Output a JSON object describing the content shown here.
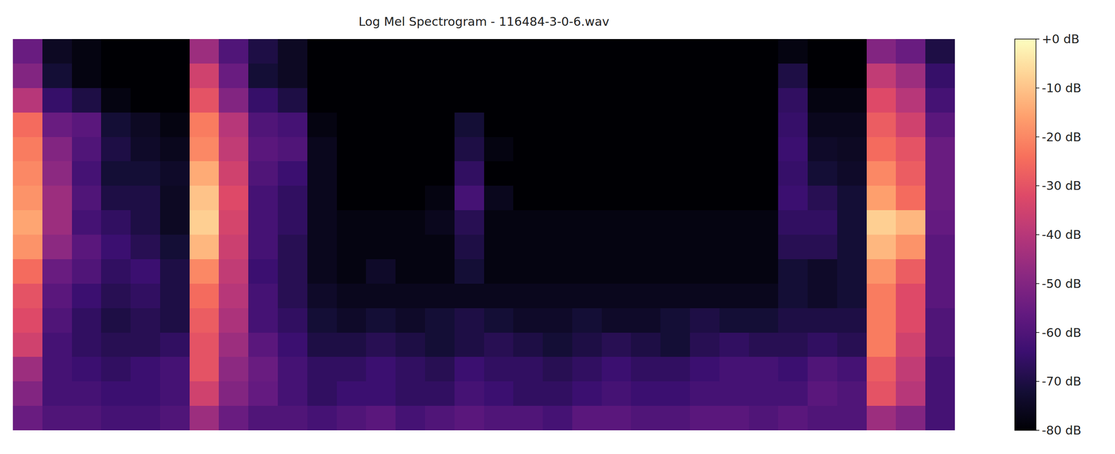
{
  "chart_data": {
    "type": "heatmap",
    "title": "Log Mel Spectrogram - 116484-3-0-6.wav",
    "tick_labels": false,
    "cells": [
      [
        -55,
        -75,
        -78,
        -80,
        -80,
        -80,
        -45,
        -60,
        -70,
        -75,
        -80,
        -80,
        -80,
        -80,
        -80,
        -80,
        -80,
        -80,
        -80,
        -80,
        -80,
        -80,
        -80,
        -80,
        -80,
        -80,
        -78,
        -80,
        -80,
        -50,
        -55,
        -70
      ],
      [
        -50,
        -72,
        -78,
        -80,
        -80,
        -80,
        -35,
        -55,
        -72,
        -75,
        -80,
        -80,
        -80,
        -80,
        -80,
        -80,
        -80,
        -80,
        -80,
        -80,
        -80,
        -80,
        -80,
        -80,
        -80,
        -80,
        -70,
        -80,
        -80,
        -38,
        -45,
        -65
      ],
      [
        -40,
        -65,
        -70,
        -78,
        -80,
        -80,
        -30,
        -50,
        -65,
        -70,
        -80,
        -80,
        -80,
        -80,
        -80,
        -80,
        -80,
        -80,
        -80,
        -80,
        -80,
        -80,
        -80,
        -80,
        -80,
        -80,
        -66,
        -78,
        -78,
        -32,
        -40,
        -62
      ],
      [
        -25,
        -55,
        -58,
        -72,
        -75,
        -78,
        -22,
        -40,
        -60,
        -62,
        -78,
        -80,
        -80,
        -80,
        -80,
        -72,
        -80,
        -80,
        -80,
        -80,
        -80,
        -80,
        -80,
        -80,
        -80,
        -80,
        -65,
        -76,
        -76,
        -28,
        -35,
        -58
      ],
      [
        -22,
        -50,
        -60,
        -70,
        -74,
        -76,
        -20,
        -38,
        -58,
        -60,
        -76,
        -80,
        -80,
        -80,
        -80,
        -70,
        -78,
        -80,
        -80,
        -80,
        -80,
        -80,
        -80,
        -80,
        -80,
        -80,
        -64,
        -74,
        -75,
        -25,
        -30,
        -55
      ],
      [
        -20,
        -48,
        -62,
        -72,
        -72,
        -74,
        -14,
        -35,
        -60,
        -64,
        -76,
        -80,
        -80,
        -80,
        -80,
        -66,
        -80,
        -80,
        -80,
        -80,
        -80,
        -80,
        -80,
        -80,
        -80,
        -80,
        -65,
        -72,
        -74,
        -20,
        -28,
        -55
      ],
      [
        -18,
        -45,
        -60,
        -70,
        -70,
        -75,
        -10,
        -32,
        -62,
        -66,
        -76,
        -80,
        -80,
        -80,
        -78,
        -62,
        -76,
        -80,
        -80,
        -80,
        -80,
        -80,
        -80,
        -80,
        -80,
        -80,
        -64,
        -68,
        -72,
        -16,
        -25,
        -55
      ],
      [
        -15,
        -45,
        -62,
        -66,
        -70,
        -75,
        -8,
        -34,
        -62,
        -66,
        -76,
        -78,
        -78,
        -78,
        -76,
        -68,
        -78,
        -78,
        -78,
        -78,
        -78,
        -78,
        -78,
        -78,
        -78,
        -78,
        -66,
        -66,
        -72,
        -8,
        -12,
        -56
      ],
      [
        -18,
        -48,
        -58,
        -64,
        -68,
        -72,
        -12,
        -36,
        -62,
        -68,
        -76,
        -78,
        -78,
        -78,
        -78,
        -70,
        -78,
        -78,
        -78,
        -78,
        -78,
        -78,
        -78,
        -78,
        -78,
        -78,
        -68,
        -68,
        -72,
        -12,
        -18,
        -58
      ],
      [
        -25,
        -55,
        -60,
        -66,
        -64,
        -70,
        -20,
        -38,
        -64,
        -68,
        -76,
        -78,
        -74,
        -78,
        -78,
        -72,
        -78,
        -78,
        -78,
        -78,
        -78,
        -78,
        -78,
        -78,
        -78,
        -78,
        -72,
        -74,
        -72,
        -18,
        -28,
        -58
      ],
      [
        -30,
        -58,
        -64,
        -68,
        -66,
        -70,
        -25,
        -40,
        -62,
        -68,
        -74,
        -76,
        -76,
        -76,
        -76,
        -76,
        -76,
        -76,
        -76,
        -76,
        -76,
        -76,
        -76,
        -76,
        -76,
        -76,
        -72,
        -74,
        -72,
        -22,
        -32,
        -58
      ],
      [
        -32,
        -60,
        -66,
        -70,
        -68,
        -70,
        -28,
        -42,
        -62,
        -66,
        -72,
        -74,
        -72,
        -74,
        -72,
        -70,
        -72,
        -74,
        -74,
        -72,
        -74,
        -74,
        -72,
        -70,
        -72,
        -72,
        -70,
        -70,
        -70,
        -22,
        -32,
        -60
      ],
      [
        -35,
        -62,
        -66,
        -68,
        -68,
        -66,
        -30,
        -45,
        -58,
        -64,
        -70,
        -70,
        -68,
        -70,
        -72,
        -70,
        -68,
        -70,
        -72,
        -70,
        -68,
        -70,
        -72,
        -68,
        -66,
        -68,
        -68,
        -66,
        -68,
        -22,
        -35,
        -60
      ],
      [
        -45,
        -62,
        -64,
        -66,
        -64,
        -62,
        -30,
        -48,
        -55,
        -62,
        -66,
        -66,
        -64,
        -66,
        -68,
        -64,
        -66,
        -66,
        -68,
        -66,
        -64,
        -66,
        -66,
        -64,
        -62,
        -62,
        -64,
        -60,
        -62,
        -28,
        -38,
        -62
      ],
      [
        -50,
        -62,
        -62,
        -64,
        -64,
        -62,
        -35,
        -50,
        -56,
        -62,
        -66,
        -64,
        -64,
        -66,
        -66,
        -62,
        -64,
        -66,
        -66,
        -64,
        -62,
        -64,
        -64,
        -62,
        -62,
        -62,
        -62,
        -58,
        -60,
        -30,
        -40,
        -62
      ],
      [
        -55,
        -60,
        -60,
        -62,
        -62,
        -60,
        -45,
        -55,
        -60,
        -60,
        -62,
        -60,
        -58,
        -62,
        -60,
        -58,
        -60,
        -60,
        -62,
        -58,
        -58,
        -60,
        -60,
        -58,
        -58,
        -60,
        -58,
        -60,
        -60,
        -45,
        -50,
        -62
      ]
    ],
    "colorbar_range": [
      -80,
      0
    ],
    "colorbar_ticks": [
      {
        "value": 0,
        "label": "+0 dB"
      },
      {
        "value": -10,
        "label": "-10 dB"
      },
      {
        "value": -20,
        "label": "-20 dB"
      },
      {
        "value": -30,
        "label": "-30 dB"
      },
      {
        "value": -40,
        "label": "-40 dB"
      },
      {
        "value": -50,
        "label": "-50 dB"
      },
      {
        "value": -60,
        "label": "-60 dB"
      },
      {
        "value": -70,
        "label": "-70 dB"
      },
      {
        "value": -80,
        "label": "-80 dB"
      }
    ]
  }
}
